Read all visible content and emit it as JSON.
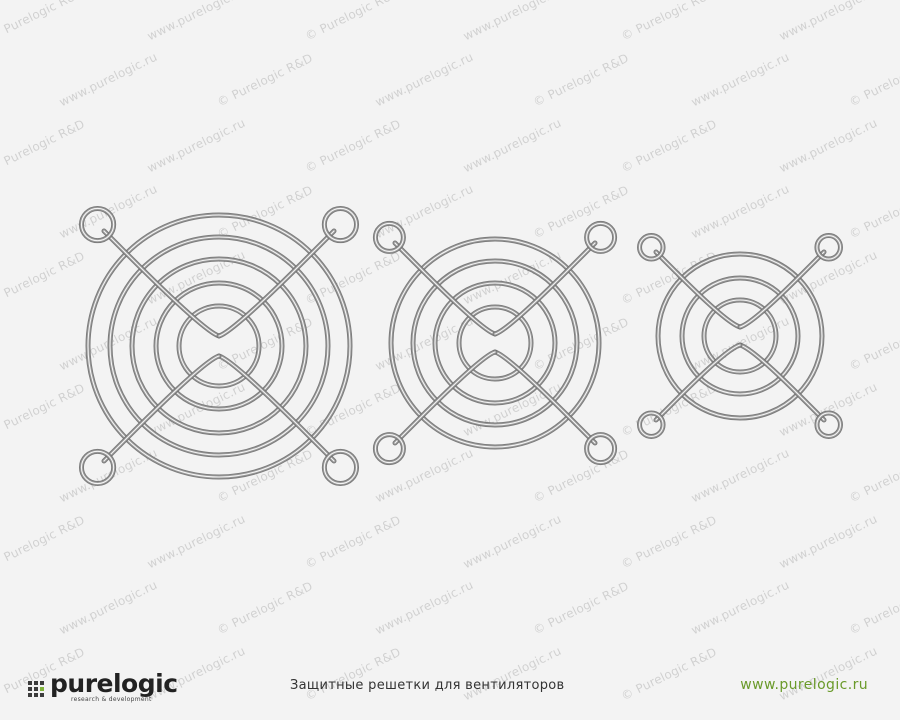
{
  "photo": {
    "subject": "Защитные решетки для вентиляторов",
    "watermarks": [
      "© Purelogic R&D",
      "www.purelogic.ru"
    ],
    "items": [
      {
        "name": "fan-guard-large",
        "rings": 4
      },
      {
        "name": "fan-guard-medium",
        "rings": 3
      },
      {
        "name": "fan-guard-small",
        "rings": 2
      }
    ]
  },
  "footer": {
    "logo_text": "purelogic",
    "logo_tagline": "research & development",
    "caption": "Защитные решетки для вентиляторов",
    "website": "www.purelogic.ru"
  },
  "colors": {
    "background": "#f3f3f3",
    "wire": "#9a9a9a",
    "wire_highlight": "#ffffff",
    "accent_green": "#6a9a2a"
  }
}
